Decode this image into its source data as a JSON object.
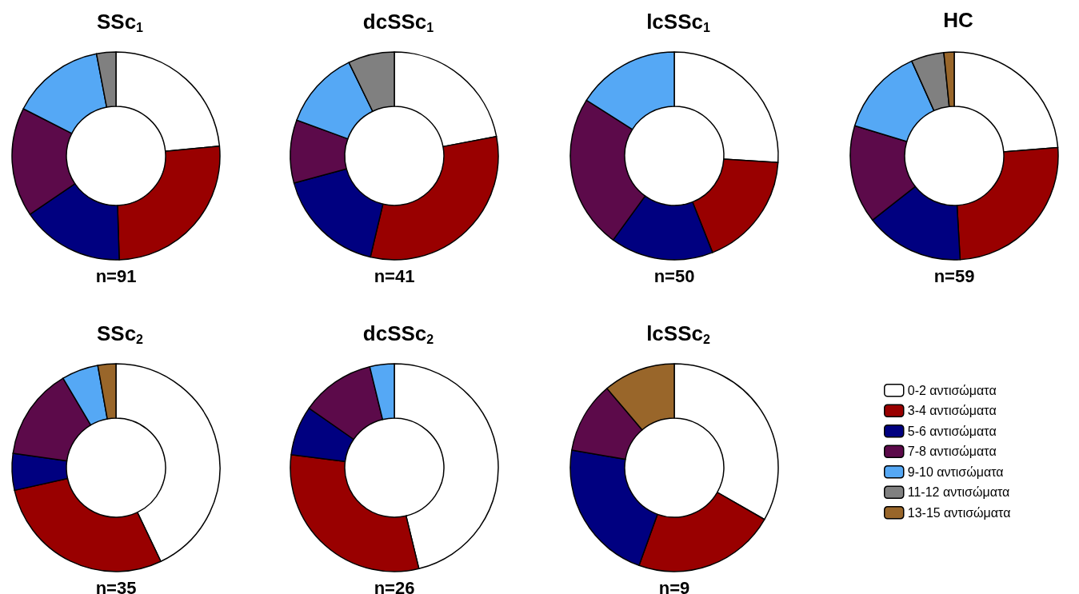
{
  "chart_data": [
    {
      "type": "donut",
      "title": "SSc$_{1}$",
      "annotations": [
        "n=91"
      ],
      "values": [
        23.5,
        26,
        16,
        17,
        14.5,
        3
      ],
      "colors": [
        "#ffffff",
        "#990000",
        "#000080",
        "#5c0a4a",
        "#55a8f5",
        "#808080"
      ]
    },
    {
      "type": "donut",
      "title": "dcSSc$_{1}$",
      "annotations": [
        "n=41"
      ],
      "values": [
        22,
        31.7,
        17.1,
        9.8,
        12.2,
        7.2
      ],
      "colors": [
        "#ffffff",
        "#990000",
        "#000080",
        "#5c0a4a",
        "#55a8f5",
        "#808080"
      ]
    },
    {
      "type": "donut",
      "title": "lcSSc$_{1}$",
      "annotations": [
        "n=50"
      ],
      "values": [
        26,
        18,
        16,
        24,
        16
      ],
      "colors": [
        "#ffffff",
        "#990000",
        "#000080",
        "#5c0a4a",
        "#55a8f5"
      ]
    },
    {
      "type": "donut",
      "title": "HC",
      "annotations": [
        "n=59"
      ],
      "values": [
        23.7,
        25.4,
        15.3,
        15.3,
        13.6,
        5.1,
        1.6
      ],
      "colors": [
        "#ffffff",
        "#990000",
        "#000080",
        "#5c0a4a",
        "#55a8f5",
        "#808080",
        "#99662a"
      ]
    },
    {
      "type": "donut",
      "title": "SSc$_{2}$",
      "annotations": [
        "n=35"
      ],
      "values": [
        42.9,
        28.6,
        5.7,
        14.3,
        5.7,
        2.8
      ],
      "colors": [
        "#ffffff",
        "#990000",
        "#000080",
        "#5c0a4a",
        "#55a8f5",
        "#99662a"
      ]
    },
    {
      "type": "donut",
      "title": "dcSSc$_{2}$",
      "annotations": [
        "n=26"
      ],
      "values": [
        46.2,
        30.8,
        7.7,
        11.5,
        3.8
      ],
      "colors": [
        "#ffffff",
        "#990000",
        "#000080",
        "#5c0a4a",
        "#55a8f5"
      ]
    },
    {
      "type": "donut",
      "title": "lcSSc$_{2}$",
      "annotations": [
        "n=9"
      ],
      "categories": [
        "0-2 αντισώματα",
        "3-4 αντισώματα",
        "5-6 αντισώματα",
        "7-8 αντισώματα",
        "9-10 αντισώματα",
        "11-12 αντισώματα",
        "13-15 αντισώματα"
      ],
      "values": [
        33.3,
        22.2,
        22.2,
        11.1,
        0,
        0,
        11.2
      ],
      "colors": [
        "#ffffff",
        "#990000",
        "#000080",
        "#5c0a4a",
        "#55a8f5",
        "#808080",
        "#99662a"
      ],
      "legend": "right"
    }
  ]
}
